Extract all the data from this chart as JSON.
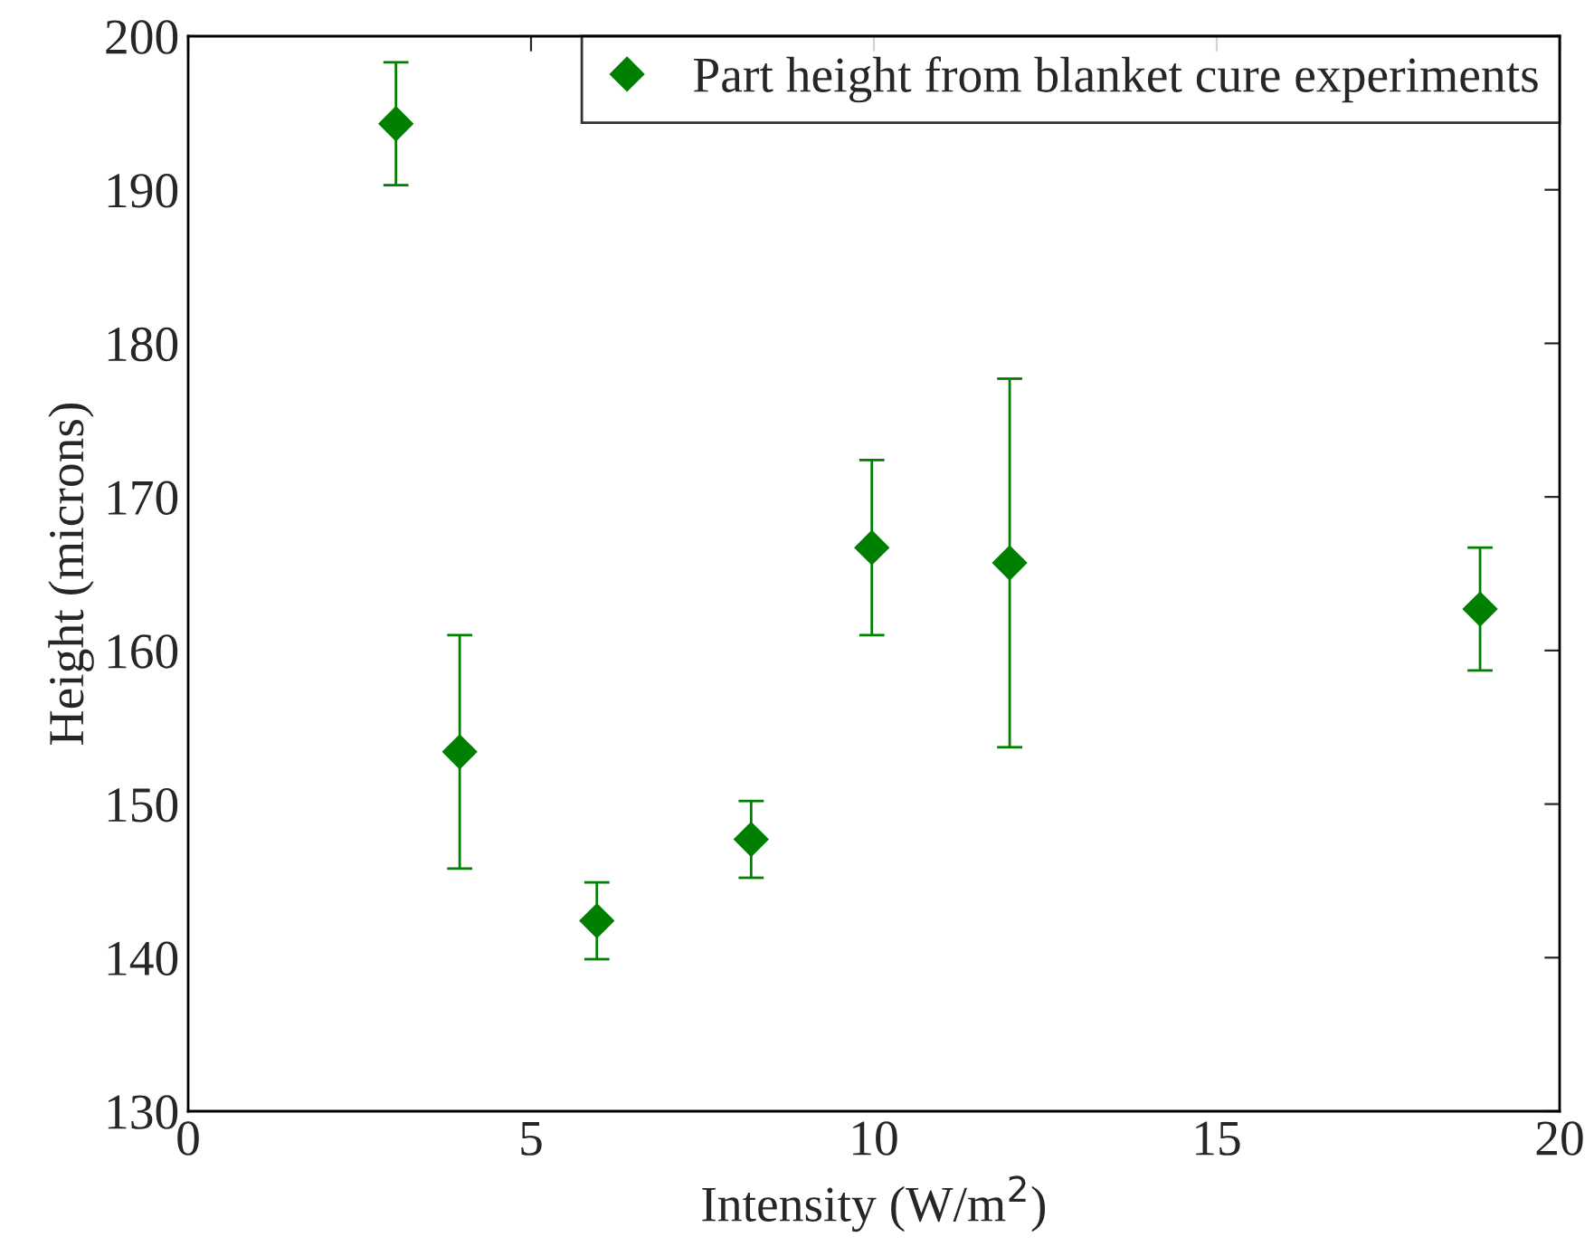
{
  "chart_data": {
    "type": "scatter",
    "xlabel": "Intensity (W/m$^{2}$)",
    "ylabel": "Height (microns)",
    "x": [
      3.03,
      3.96,
      5.96,
      8.21,
      9.97,
      11.98,
      18.84
    ],
    "series": [
      {
        "name": "Part height from blanket cure experiments",
        "color": "#008000",
        "values": [
          194.3,
          153.4,
          142.4,
          147.7,
          166.7,
          165.7,
          162.7
        ],
        "errors": [
          4,
          7.6,
          2.5,
          2.5,
          5.7,
          12,
          4
        ]
      }
    ],
    "marker": "diamond",
    "legend": "top right",
    "grid": false,
    "xlim": [
      0,
      20
    ],
    "xticks": [
      0,
      5,
      10,
      15,
      20
    ],
    "ylim": [
      130,
      200
    ],
    "yticks": [
      130,
      140,
      150,
      160,
      170,
      180,
      190,
      200
    ]
  }
}
